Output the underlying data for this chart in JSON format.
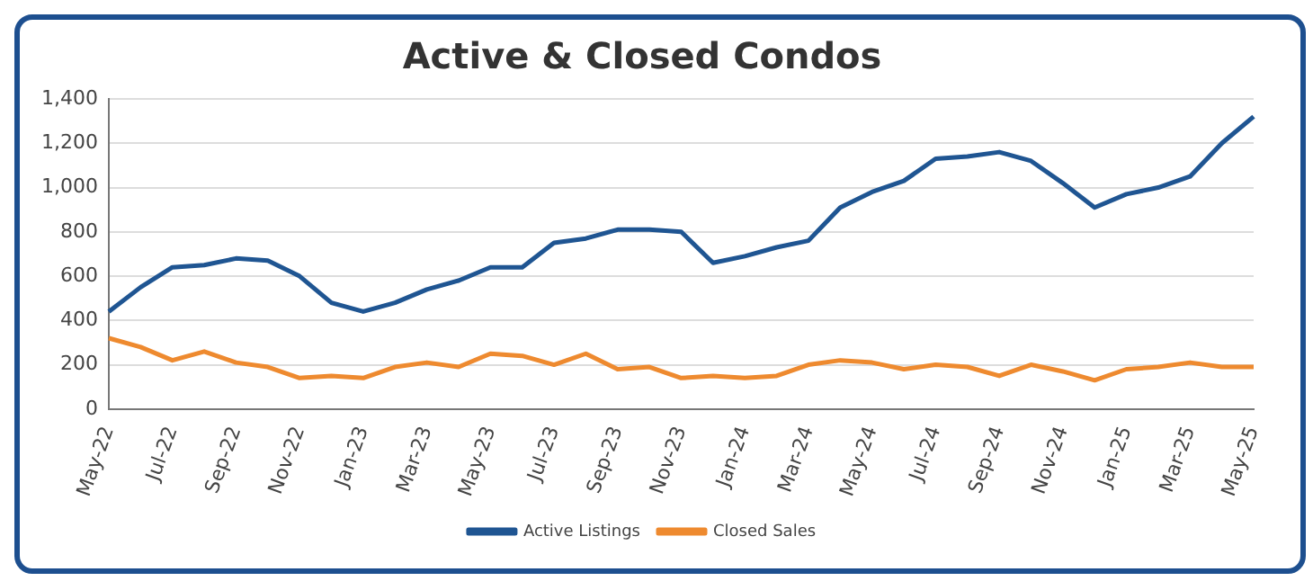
{
  "chart_data": {
    "type": "line",
    "title": "Active & Closed Condos",
    "categories": [
      "May-22",
      null,
      "Jul-22",
      null,
      "Sep-22",
      null,
      "Nov-22",
      null,
      "Jan-23",
      null,
      "Mar-23",
      null,
      "May-23",
      null,
      "Jul-23",
      null,
      "Sep-23",
      null,
      "Nov-23",
      null,
      "Jan-24",
      null,
      "Mar-24",
      null,
      "May-24",
      null,
      "Jul-24",
      null,
      "Sep-24",
      null,
      "Nov-24",
      null,
      "Jan-25",
      null,
      "Mar-25",
      null,
      "May-25"
    ],
    "series": [
      {
        "name": "Active Listings",
        "color": "#1f5592",
        "values": [
          440,
          550,
          640,
          650,
          680,
          670,
          600,
          480,
          440,
          480,
          540,
          580,
          640,
          640,
          750,
          770,
          810,
          810,
          800,
          660,
          690,
          730,
          760,
          910,
          980,
          1030,
          1130,
          1140,
          1160,
          1120,
          1020,
          910,
          970,
          1000,
          1050,
          1200,
          1320
        ]
      },
      {
        "name": "Closed Sales",
        "color": "#ee8a2f",
        "values": [
          320,
          280,
          220,
          260,
          210,
          190,
          140,
          150,
          140,
          190,
          210,
          190,
          250,
          240,
          200,
          250,
          180,
          190,
          140,
          150,
          140,
          150,
          200,
          220,
          210,
          180,
          200,
          190,
          150,
          200,
          170,
          130,
          180,
          190,
          210,
          190,
          190
        ]
      }
    ],
    "ylim": [
      0,
      1400
    ],
    "yticks": [
      0,
      200,
      400,
      600,
      800,
      {
        "value": 1000,
        "label": "1,000"
      },
      {
        "value": 1200,
        "label": "1,200"
      },
      {
        "value": 1400,
        "label": "1,400"
      }
    ],
    "grid": "y",
    "legend": "bottom",
    "marker": "none",
    "line_style": "solid"
  }
}
